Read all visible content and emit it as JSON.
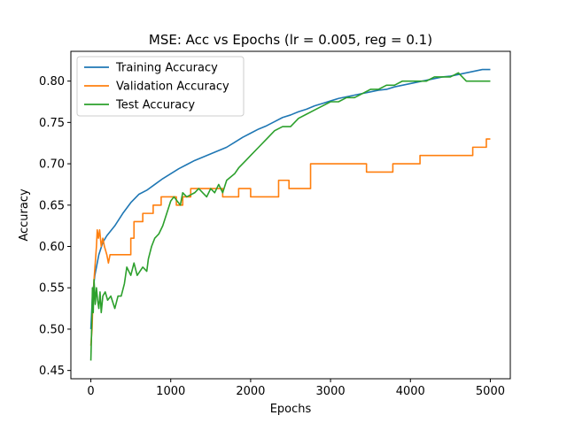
{
  "chart_data": {
    "type": "line",
    "title": "MSE: Acc vs Epochs (lr = 0.005, reg = 0.1)",
    "xlabel": "Epochs",
    "ylabel": "Accuracy",
    "xlim": [
      -250,
      5250
    ],
    "ylim": [
      0.44,
      0.836
    ],
    "xticks": [
      0,
      1000,
      2000,
      3000,
      4000,
      5000
    ],
    "xtick_labels": [
      "0",
      "1000",
      "2000",
      "3000",
      "4000",
      "5000"
    ],
    "yticks": [
      0.45,
      0.5,
      0.55,
      0.6,
      0.65,
      0.7,
      0.75,
      0.8
    ],
    "ytick_labels": [
      "0.45",
      "0.50",
      "0.55",
      "0.60",
      "0.65",
      "0.70",
      "0.75",
      "0.80"
    ],
    "grid": false,
    "legend_position": "top-left",
    "series": [
      {
        "name": "Training Accuracy",
        "color": "#1f77b4",
        "points": [
          [
            0,
            0.5
          ],
          [
            20,
            0.54
          ],
          [
            50,
            0.565
          ],
          [
            100,
            0.59
          ],
          [
            150,
            0.605
          ],
          [
            200,
            0.613
          ],
          [
            300,
            0.625
          ],
          [
            400,
            0.64
          ],
          [
            500,
            0.653
          ],
          [
            600,
            0.663
          ],
          [
            700,
            0.668
          ],
          [
            800,
            0.675
          ],
          [
            900,
            0.682
          ],
          [
            1000,
            0.688
          ],
          [
            1100,
            0.694
          ],
          [
            1200,
            0.699
          ],
          [
            1300,
            0.704
          ],
          [
            1400,
            0.708
          ],
          [
            1500,
            0.712
          ],
          [
            1600,
            0.716
          ],
          [
            1700,
            0.72
          ],
          [
            1800,
            0.726
          ],
          [
            1900,
            0.732
          ],
          [
            2000,
            0.737
          ],
          [
            2100,
            0.742
          ],
          [
            2200,
            0.746
          ],
          [
            2300,
            0.751
          ],
          [
            2400,
            0.756
          ],
          [
            2500,
            0.759
          ],
          [
            2600,
            0.763
          ],
          [
            2700,
            0.766
          ],
          [
            2800,
            0.77
          ],
          [
            2900,
            0.773
          ],
          [
            3000,
            0.776
          ],
          [
            3100,
            0.779
          ],
          [
            3200,
            0.781
          ],
          [
            3300,
            0.783
          ],
          [
            3400,
            0.785
          ],
          [
            3500,
            0.787
          ],
          [
            3600,
            0.789
          ],
          [
            3700,
            0.79
          ],
          [
            3800,
            0.793
          ],
          [
            3900,
            0.795
          ],
          [
            4000,
            0.797
          ],
          [
            4100,
            0.799
          ],
          [
            4200,
            0.801
          ],
          [
            4300,
            0.803
          ],
          [
            4400,
            0.805
          ],
          [
            4500,
            0.806
          ],
          [
            4600,
            0.808
          ],
          [
            4700,
            0.81
          ],
          [
            4800,
            0.812
          ],
          [
            4900,
            0.814
          ],
          [
            5000,
            0.814
          ]
        ]
      },
      {
        "name": "Validation Accuracy",
        "color": "#ff7f0e",
        "points": [
          [
            0,
            0.48
          ],
          [
            15,
            0.5
          ],
          [
            25,
            0.53
          ],
          [
            40,
            0.56
          ],
          [
            55,
            0.58
          ],
          [
            70,
            0.6
          ],
          [
            80,
            0.62
          ],
          [
            95,
            0.61
          ],
          [
            110,
            0.62
          ],
          [
            130,
            0.6
          ],
          [
            150,
            0.61
          ],
          [
            170,
            0.6
          ],
          [
            200,
            0.59
          ],
          [
            220,
            0.58
          ],
          [
            240,
            0.59
          ],
          [
            500,
            0.59
          ],
          [
            500,
            0.61
          ],
          [
            540,
            0.61
          ],
          [
            540,
            0.63
          ],
          [
            650,
            0.63
          ],
          [
            650,
            0.64
          ],
          [
            780,
            0.64
          ],
          [
            780,
            0.65
          ],
          [
            880,
            0.65
          ],
          [
            880,
            0.66
          ],
          [
            1070,
            0.66
          ],
          [
            1070,
            0.65
          ],
          [
            1150,
            0.65
          ],
          [
            1150,
            0.66
          ],
          [
            1250,
            0.66
          ],
          [
            1250,
            0.67
          ],
          [
            1650,
            0.67
          ],
          [
            1650,
            0.66
          ],
          [
            1850,
            0.66
          ],
          [
            1850,
            0.67
          ],
          [
            2000,
            0.67
          ],
          [
            2000,
            0.66
          ],
          [
            2350,
            0.66
          ],
          [
            2350,
            0.68
          ],
          [
            2480,
            0.68
          ],
          [
            2480,
            0.67
          ],
          [
            2750,
            0.67
          ],
          [
            2750,
            0.7
          ],
          [
            3450,
            0.7
          ],
          [
            3450,
            0.69
          ],
          [
            3780,
            0.69
          ],
          [
            3780,
            0.7
          ],
          [
            4120,
            0.7
          ],
          [
            4120,
            0.71
          ],
          [
            4780,
            0.71
          ],
          [
            4780,
            0.72
          ],
          [
            4950,
            0.72
          ],
          [
            4950,
            0.73
          ],
          [
            5000,
            0.73
          ]
        ]
      },
      {
        "name": "Test Accuracy",
        "color": "#2ca02c",
        "points": [
          [
            0,
            0.462
          ],
          [
            10,
            0.5
          ],
          [
            20,
            0.55
          ],
          [
            30,
            0.52
          ],
          [
            40,
            0.56
          ],
          [
            55,
            0.53
          ],
          [
            70,
            0.55
          ],
          [
            85,
            0.535
          ],
          [
            100,
            0.525
          ],
          [
            115,
            0.545
          ],
          [
            130,
            0.52
          ],
          [
            150,
            0.54
          ],
          [
            180,
            0.545
          ],
          [
            210,
            0.535
          ],
          [
            250,
            0.54
          ],
          [
            300,
            0.525
          ],
          [
            340,
            0.54
          ],
          [
            380,
            0.54
          ],
          [
            420,
            0.555
          ],
          [
            450,
            0.575
          ],
          [
            500,
            0.565
          ],
          [
            540,
            0.58
          ],
          [
            580,
            0.565
          ],
          [
            650,
            0.575
          ],
          [
            700,
            0.57
          ],
          [
            720,
            0.585
          ],
          [
            760,
            0.6
          ],
          [
            800,
            0.61
          ],
          [
            850,
            0.615
          ],
          [
            900,
            0.625
          ],
          [
            950,
            0.64
          ],
          [
            1000,
            0.655
          ],
          [
            1040,
            0.66
          ],
          [
            1080,
            0.655
          ],
          [
            1120,
            0.65
          ],
          [
            1150,
            0.665
          ],
          [
            1200,
            0.66
          ],
          [
            1300,
            0.665
          ],
          [
            1350,
            0.67
          ],
          [
            1400,
            0.665
          ],
          [
            1450,
            0.66
          ],
          [
            1500,
            0.67
          ],
          [
            1550,
            0.665
          ],
          [
            1600,
            0.675
          ],
          [
            1650,
            0.665
          ],
          [
            1700,
            0.68
          ],
          [
            1800,
            0.688
          ],
          [
            1850,
            0.695
          ],
          [
            1900,
            0.7
          ],
          [
            1950,
            0.705
          ],
          [
            2000,
            0.71
          ],
          [
            2100,
            0.72
          ],
          [
            2200,
            0.73
          ],
          [
            2300,
            0.74
          ],
          [
            2400,
            0.745
          ],
          [
            2500,
            0.745
          ],
          [
            2600,
            0.755
          ],
          [
            2700,
            0.76
          ],
          [
            2800,
            0.765
          ],
          [
            2900,
            0.77
          ],
          [
            3000,
            0.775
          ],
          [
            3100,
            0.775
          ],
          [
            3200,
            0.78
          ],
          [
            3300,
            0.78
          ],
          [
            3400,
            0.785
          ],
          [
            3500,
            0.79
          ],
          [
            3600,
            0.79
          ],
          [
            3700,
            0.795
          ],
          [
            3800,
            0.795
          ],
          [
            3900,
            0.8
          ],
          [
            4000,
            0.8
          ],
          [
            4100,
            0.8
          ],
          [
            4200,
            0.8
          ],
          [
            4300,
            0.805
          ],
          [
            4400,
            0.805
          ],
          [
            4500,
            0.805
          ],
          [
            4600,
            0.81
          ],
          [
            4700,
            0.8
          ],
          [
            4800,
            0.8
          ],
          [
            4900,
            0.8
          ],
          [
            5000,
            0.8
          ]
        ]
      }
    ]
  }
}
